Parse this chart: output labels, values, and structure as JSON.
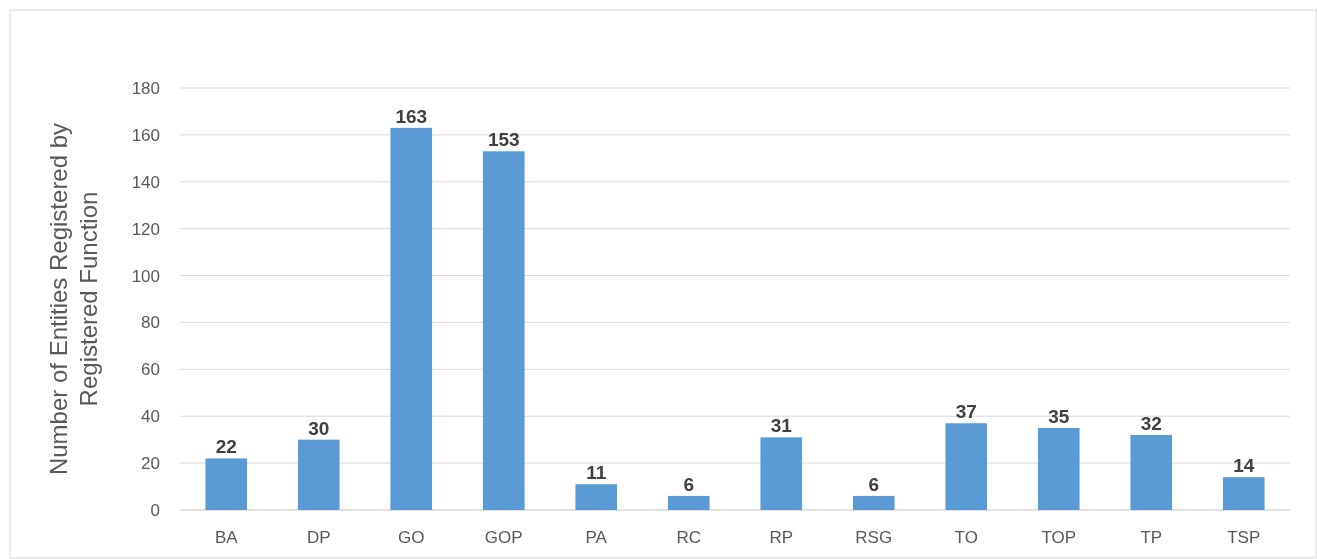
{
  "chart_data": {
    "type": "bar",
    "ylabel": "Number of Entities Registered by Registered Function",
    "categories": [
      "BA",
      "DP",
      "GO",
      "GOP",
      "PA",
      "RC",
      "RP",
      "RSG",
      "TO",
      "TOP",
      "TP",
      "TSP"
    ],
    "values": [
      22,
      30,
      163,
      153,
      11,
      6,
      31,
      6,
      37,
      35,
      32,
      14
    ],
    "color": "#5b9bd5",
    "ylim": [
      0,
      180
    ],
    "yticks": [
      0,
      20,
      40,
      60,
      80,
      100,
      120,
      140,
      160,
      180
    ],
    "grid": "y",
    "data_labels": true
  }
}
